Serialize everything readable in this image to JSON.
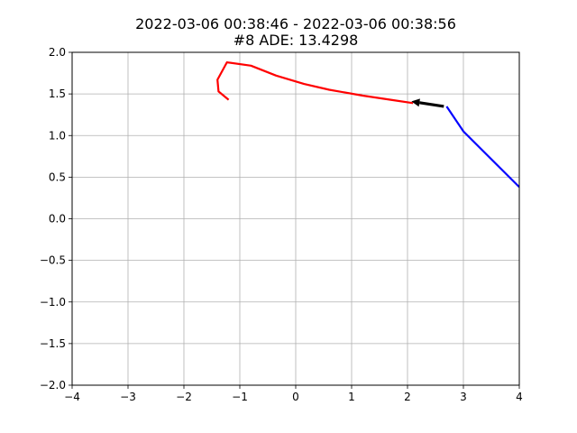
{
  "chart_data": {
    "type": "line",
    "title": "2022-03-06 00:38:46 - 2022-03-06 00:38:56",
    "subtitle": "#8 ADE: 13.4298",
    "xlabel": "",
    "ylabel": "",
    "xlim": [
      -4,
      4
    ],
    "ylim": [
      -2.0,
      2.0
    ],
    "x_ticks": [
      "−4",
      "−3",
      "−2",
      "−1",
      "0",
      "1",
      "2",
      "3",
      "4"
    ],
    "y_ticks": [
      "−2.0",
      "−1.5",
      "−1.0",
      "−0.5",
      "0.0",
      "0.5",
      "1.0",
      "1.5",
      "2.0"
    ],
    "grid": true,
    "series": [
      {
        "color": "#ff0000",
        "points": [
          [
            2.1,
            1.39
          ],
          [
            1.7,
            1.43
          ],
          [
            1.2,
            1.48
          ],
          [
            0.6,
            1.55
          ],
          [
            0.15,
            1.62
          ],
          [
            -0.35,
            1.72
          ],
          [
            -0.8,
            1.84
          ],
          [
            -1.23,
            1.88
          ],
          [
            -1.4,
            1.67
          ],
          [
            -1.38,
            1.53
          ],
          [
            -1.2,
            1.43
          ]
        ]
      },
      {
        "color": "#0000ff",
        "points": [
          [
            4.0,
            0.38
          ],
          [
            3.0,
            1.05
          ],
          [
            2.7,
            1.35
          ]
        ]
      }
    ],
    "arrow": {
      "color": "#000000",
      "from": [
        2.65,
        1.35
      ],
      "to": [
        2.07,
        1.41
      ]
    }
  }
}
